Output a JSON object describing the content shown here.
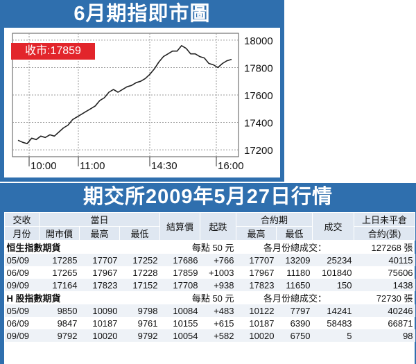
{
  "chart_data": {
    "type": "line",
    "title": "6月期指即市圖",
    "annotation": "收市:17859",
    "x_ticks": [
      "10:00",
      "11:00",
      "14:30",
      "16:00"
    ],
    "y_ticks": [
      18000,
      17800,
      17600,
      17400,
      17200
    ],
    "ylim": [
      17150,
      18050
    ],
    "grid": true,
    "series": [
      {
        "values": [
          17270,
          17255,
          17245,
          17285,
          17275,
          17300,
          17290,
          17310,
          17300,
          17330,
          17360,
          17380,
          17420,
          17440,
          17460,
          17480,
          17500,
          17520,
          17560,
          17580,
          17620,
          17640,
          17620,
          17640,
          17660,
          17670,
          17690,
          17700,
          17720,
          17750,
          17790,
          17840,
          17880,
          17900,
          17920,
          17920,
          17960,
          17940,
          17900,
          17900,
          17880,
          17870,
          17830,
          17820,
          17800,
          17830,
          17850,
          17860
        ]
      }
    ],
    "color": "#222222"
  },
  "table": {
    "title": "期交所2009年5月27日行情",
    "headers": {
      "contract_month": [
        "交收",
        "月份"
      ],
      "today": "當日",
      "open": "開市價",
      "high": "最高",
      "low": "最低",
      "settle": "結算價",
      "change": "起跌",
      "contract_period": "合約期",
      "cp_high": "最高",
      "cp_low": "最低",
      "volume": "成交",
      "open_interest": [
        "上日未平倉",
        "合約(張)"
      ]
    },
    "sections": [
      {
        "name": "恒生指數期貨",
        "point_value": "每點 50 元",
        "total_label": "各月份總成交：",
        "total": "127268 張",
        "rows": [
          [
            "05/09",
            "17285",
            "17707",
            "17252",
            "17686",
            "+766",
            "17707",
            "13209",
            "25234",
            "40115"
          ],
          [
            "06/09",
            "17265",
            "17967",
            "17228",
            "17859",
            "+1003",
            "17967",
            "11180",
            "101840",
            "75606"
          ],
          [
            "09/09",
            "17164",
            "17823",
            "17152",
            "17708",
            "+938",
            "17823",
            "11650",
            "150",
            "1438"
          ]
        ]
      },
      {
        "name": "H 股指數期貨",
        "point_value": "每點 50 元",
        "total_label": "各月份總成交：",
        "total": "72730 張",
        "rows": [
          [
            "05/09",
            "9850",
            "10090",
            "9798",
            "10084",
            "+483",
            "10122",
            "7797",
            "14241",
            "40246"
          ],
          [
            "06/09",
            "9847",
            "10187",
            "9761",
            "10155",
            "+615",
            "10187",
            "6390",
            "58483",
            "66871"
          ],
          [
            "09/09",
            "9792",
            "10020",
            "9792",
            "10054",
            "+582",
            "10020",
            "6750",
            "5",
            "98"
          ]
        ]
      }
    ]
  }
}
